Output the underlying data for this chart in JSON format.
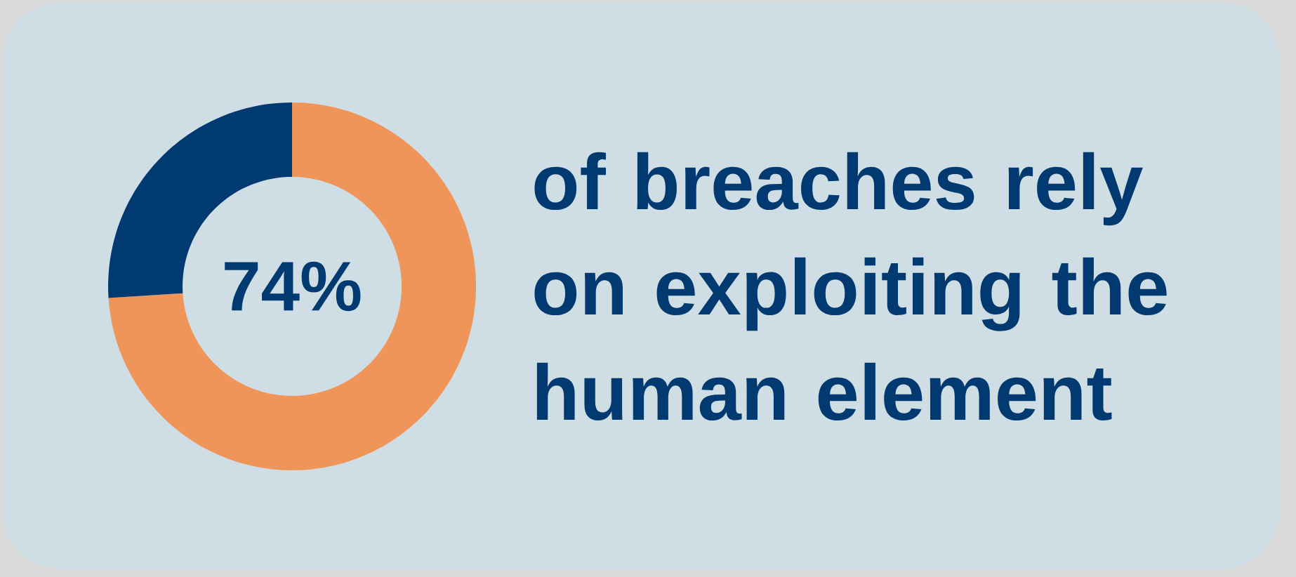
{
  "chart_data": {
    "type": "donut",
    "title": "of breaches rely on exploiting the human element",
    "categories": [
      null,
      null
    ],
    "values": [
      74,
      26
    ],
    "colors": [
      "#f0955a",
      "#003a70"
    ],
    "value_labels": [
      "74%",
      null
    ]
  }
}
